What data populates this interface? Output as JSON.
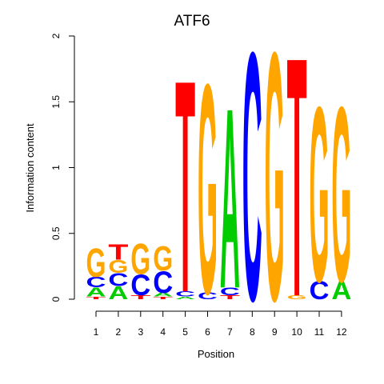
{
  "chart_data": {
    "type": "sequence-logo",
    "title": "ATF6",
    "xlabel": "Position",
    "ylabel": "Information content",
    "ylim": [
      0,
      2
    ],
    "yticks": [
      0,
      0.5,
      1,
      1.5,
      2
    ],
    "ytick_labels": [
      "0",
      "0.5",
      "1",
      "1.5",
      "2"
    ],
    "positions": [
      "1",
      "2",
      "3",
      "4",
      "5",
      "6",
      "7",
      "8",
      "9",
      "10",
      "11",
      "12"
    ],
    "colors": {
      "A": "#00cc00",
      "C": "#0000ff",
      "G": "#ffa500",
      "T": "#ff0000"
    },
    "stacks": [
      [
        {
          "letter": "T",
          "height": 0.02
        },
        {
          "letter": "A",
          "height": 0.07
        },
        {
          "letter": "C",
          "height": 0.08
        },
        {
          "letter": "G",
          "height": 0.22
        }
      ],
      [
        {
          "letter": "A",
          "height": 0.1
        },
        {
          "letter": "C",
          "height": 0.1
        },
        {
          "letter": "G",
          "height": 0.1
        },
        {
          "letter": "T",
          "height": 0.12
        }
      ],
      [
        {
          "letter": "T",
          "height": 0.03
        },
        {
          "letter": "C",
          "height": 0.16
        },
        {
          "letter": "G",
          "height": 0.24
        }
      ],
      [
        {
          "letter": "T",
          "height": 0.02
        },
        {
          "letter": "A",
          "height": 0.03
        },
        {
          "letter": "C",
          "height": 0.17
        },
        {
          "letter": "G",
          "height": 0.19
        }
      ],
      [
        {
          "letter": "A",
          "height": 0.02
        },
        {
          "letter": "C",
          "height": 0.04
        },
        {
          "letter": "T",
          "height": 1.65
        }
      ],
      [
        {
          "letter": "C",
          "height": 0.05
        },
        {
          "letter": "G",
          "height": 1.63
        }
      ],
      [
        {
          "letter": "T",
          "height": 0.03
        },
        {
          "letter": "C",
          "height": 0.06
        },
        {
          "letter": "A",
          "height": 1.4
        }
      ],
      [
        {
          "letter": "C",
          "height": 1.93
        }
      ],
      [
        {
          "letter": "G",
          "height": 1.93
        }
      ],
      [
        {
          "letter": "G",
          "height": 0.03
        },
        {
          "letter": "T",
          "height": 1.86
        }
      ],
      [
        {
          "letter": "C",
          "height": 0.14
        },
        {
          "letter": "G",
          "height": 1.36
        }
      ],
      [
        {
          "letter": "A",
          "height": 0.14
        },
        {
          "letter": "G",
          "height": 1.36
        }
      ]
    ]
  }
}
